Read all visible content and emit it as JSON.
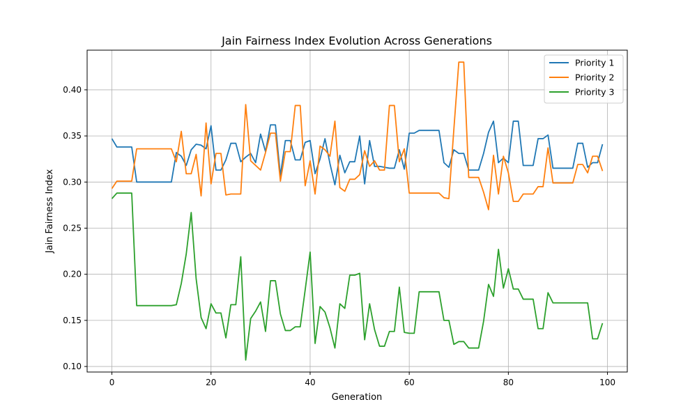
{
  "chart_data": {
    "type": "line",
    "title": "Jain Fairness Index Evolution Across Generations",
    "xlabel": "Generation",
    "ylabel": "Jain Fairness Index",
    "xlim": [
      -5,
      104
    ],
    "ylim": [
      0.094,
      0.443
    ],
    "xticks": [
      0,
      20,
      40,
      60,
      80,
      100
    ],
    "yticks": [
      0.1,
      0.15,
      0.2,
      0.25,
      0.3,
      0.35,
      0.4
    ],
    "ytick_labels": [
      "0.10",
      "0.15",
      "0.20",
      "0.25",
      "0.30",
      "0.35",
      "0.40"
    ],
    "grid": true,
    "legend_position": "top-right",
    "series": [
      {
        "name": "Priority 1",
        "color": "#1f77b4",
        "values": [
          0.347,
          0.338,
          0.338,
          0.338,
          0.338,
          0.3,
          0.3,
          0.3,
          0.3,
          0.3,
          0.3,
          0.3,
          0.3,
          0.332,
          0.328,
          0.318,
          0.335,
          0.341,
          0.34,
          0.336,
          0.361,
          0.313,
          0.313,
          0.324,
          0.342,
          0.342,
          0.322,
          0.327,
          0.331,
          0.321,
          0.352,
          0.333,
          0.362,
          0.362,
          0.307,
          0.345,
          0.345,
          0.324,
          0.324,
          0.343,
          0.345,
          0.309,
          0.325,
          0.347,
          0.32,
          0.297,
          0.329,
          0.31,
          0.322,
          0.322,
          0.35,
          0.298,
          0.345,
          0.317,
          0.317,
          0.316,
          0.315,
          0.315,
          0.335,
          0.314,
          0.353,
          0.353,
          0.356,
          0.356,
          0.356,
          0.356,
          0.356,
          0.321,
          0.316,
          0.335,
          0.331,
          0.331,
          0.313,
          0.313,
          0.313,
          0.331,
          0.354,
          0.366,
          0.321,
          0.326,
          0.321,
          0.366,
          0.366,
          0.318,
          0.318,
          0.318,
          0.347,
          0.347,
          0.351,
          0.315,
          0.315,
          0.315,
          0.315,
          0.315,
          0.342,
          0.342,
          0.316,
          0.321,
          0.321,
          0.341
        ]
      },
      {
        "name": "Priority 2",
        "color": "#ff7f0e",
        "values": [
          0.293,
          0.301,
          0.301,
          0.301,
          0.301,
          0.336,
          0.336,
          0.336,
          0.336,
          0.336,
          0.336,
          0.336,
          0.336,
          0.322,
          0.355,
          0.309,
          0.309,
          0.33,
          0.285,
          0.364,
          0.298,
          0.331,
          0.331,
          0.286,
          0.287,
          0.287,
          0.287,
          0.384,
          0.323,
          0.318,
          0.313,
          0.332,
          0.353,
          0.353,
          0.301,
          0.333,
          0.333,
          0.383,
          0.383,
          0.296,
          0.323,
          0.287,
          0.339,
          0.335,
          0.328,
          0.366,
          0.294,
          0.29,
          0.303,
          0.303,
          0.308,
          0.334,
          0.317,
          0.323,
          0.313,
          0.313,
          0.383,
          0.383,
          0.322,
          0.336,
          0.288,
          0.288,
          0.288,
          0.288,
          0.288,
          0.288,
          0.288,
          0.283,
          0.282,
          0.357,
          0.43,
          0.43,
          0.305,
          0.305,
          0.305,
          0.289,
          0.27,
          0.329,
          0.287,
          0.328,
          0.31,
          0.279,
          0.279,
          0.287,
          0.287,
          0.287,
          0.295,
          0.295,
          0.337,
          0.299,
          0.299,
          0.299,
          0.299,
          0.299,
          0.319,
          0.319,
          0.31,
          0.328,
          0.328,
          0.312
        ]
      },
      {
        "name": "Priority 3",
        "color": "#2ca02c",
        "values": [
          0.282,
          0.288,
          0.288,
          0.288,
          0.288,
          0.166,
          0.166,
          0.166,
          0.166,
          0.166,
          0.166,
          0.166,
          0.166,
          0.167,
          0.19,
          0.222,
          0.267,
          0.195,
          0.153,
          0.141,
          0.168,
          0.158,
          0.158,
          0.131,
          0.167,
          0.167,
          0.219,
          0.107,
          0.152,
          0.16,
          0.17,
          0.138,
          0.193,
          0.193,
          0.157,
          0.139,
          0.139,
          0.143,
          0.143,
          0.183,
          0.224,
          0.125,
          0.165,
          0.159,
          0.142,
          0.12,
          0.168,
          0.163,
          0.199,
          0.199,
          0.201,
          0.129,
          0.168,
          0.14,
          0.122,
          0.122,
          0.138,
          0.138,
          0.186,
          0.137,
          0.136,
          0.136,
          0.181,
          0.181,
          0.181,
          0.181,
          0.181,
          0.15,
          0.15,
          0.124,
          0.127,
          0.127,
          0.12,
          0.12,
          0.12,
          0.149,
          0.189,
          0.176,
          0.227,
          0.185,
          0.206,
          0.184,
          0.184,
          0.173,
          0.173,
          0.173,
          0.141,
          0.141,
          0.18,
          0.169,
          0.169,
          0.169,
          0.169,
          0.169,
          0.169,
          0.169,
          0.169,
          0.13,
          0.13,
          0.147
        ]
      }
    ]
  }
}
